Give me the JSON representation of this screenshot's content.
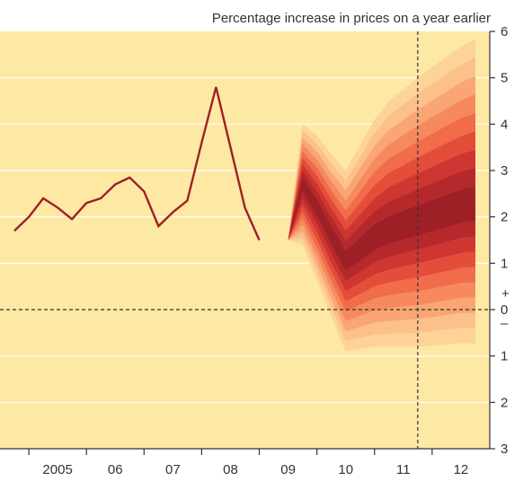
{
  "chart_data": {
    "type": "fan",
    "title": "Percentage increase in prices on a year earlier",
    "colors": {
      "background": "#fde8a4",
      "history_line": "#9e2027",
      "grid": "#ffffff",
      "axis": "#333333",
      "fan_bands": [
        "#fdd39a",
        "#fcc18a",
        "#f9a574",
        "#f68a5e",
        "#f06c4b",
        "#e34d3a",
        "#cd3631",
        "#b5292d",
        "#9e2027"
      ]
    },
    "y_ticks": [
      {
        "value": 6,
        "label": "6"
      },
      {
        "value": 5,
        "label": "5"
      },
      {
        "value": 4,
        "label": "4"
      },
      {
        "value": 3,
        "label": "3"
      },
      {
        "value": 2,
        "label": "2"
      },
      {
        "value": 1,
        "label": "1"
      },
      {
        "value": 0,
        "label": "0"
      },
      {
        "value": -1,
        "label": "1"
      },
      {
        "value": -2,
        "label": "2"
      },
      {
        "value": -3,
        "label": "3"
      }
    ],
    "sign_labels": {
      "plus": "+",
      "minus": "–"
    },
    "ylim": [
      -3,
      6
    ],
    "xlim": [
      2004.5,
      2013.0
    ],
    "x_tick_labels": [
      {
        "x": 2005.5,
        "label": "2005"
      },
      {
        "x": 2006.5,
        "label": "06"
      },
      {
        "x": 2007.5,
        "label": "07"
      },
      {
        "x": 2008.5,
        "label": "08"
      },
      {
        "x": 2009.5,
        "label": "09"
      },
      {
        "x": 2010.5,
        "label": "10"
      },
      {
        "x": 2011.5,
        "label": "11"
      },
      {
        "x": 2012.5,
        "label": "12"
      }
    ],
    "x_year_boundaries": [
      2005,
      2006,
      2007,
      2008,
      2009,
      2010,
      2011,
      2012
    ],
    "history": {
      "x": [
        2004.75,
        2005.0,
        2005.25,
        2005.5,
        2005.75,
        2006.0,
        2006.25,
        2006.5,
        2006.75,
        2007.0,
        2007.25,
        2007.5,
        2007.75,
        2008.0,
        2008.25,
        2008.5,
        2008.75,
        2009.0,
        2009.25,
        2009.5
      ],
      "y": [
        1.7,
        2.0,
        2.4,
        2.2,
        1.95,
        2.3,
        2.4,
        2.7,
        2.85,
        2.55,
        1.8,
        2.1,
        2.35,
        3.6,
        4.8,
        3.5,
        2.2,
        1.5,
        null,
        null
      ]
    },
    "projection_x": [
      2009.5,
      2009.75,
      2010.0,
      2010.25,
      2010.5,
      2010.75,
      2011.0,
      2011.25,
      2011.5,
      2011.75,
      2012.0,
      2012.25,
      2012.5,
      2012.75
    ],
    "projection_median": [
      1.5,
      2.7,
      2.2,
      1.6,
      1.05,
      1.3,
      1.55,
      1.7,
      1.8,
      1.9,
      2.0,
      2.1,
      2.2,
      2.25
    ],
    "projection_half_widths": [
      0.0,
      1.3,
      1.55,
      1.75,
      1.95,
      2.15,
      2.35,
      2.5,
      2.6,
      2.7,
      2.78,
      2.85,
      2.92,
      2.98
    ],
    "projection_upper_skew": [
      0.0,
      0.0,
      0.0,
      0.0,
      0.0,
      0.1,
      0.2,
      0.3,
      0.35,
      0.4,
      0.45,
      0.5,
      0.55,
      0.6
    ],
    "vertical_marker_x": 2011.75
  }
}
